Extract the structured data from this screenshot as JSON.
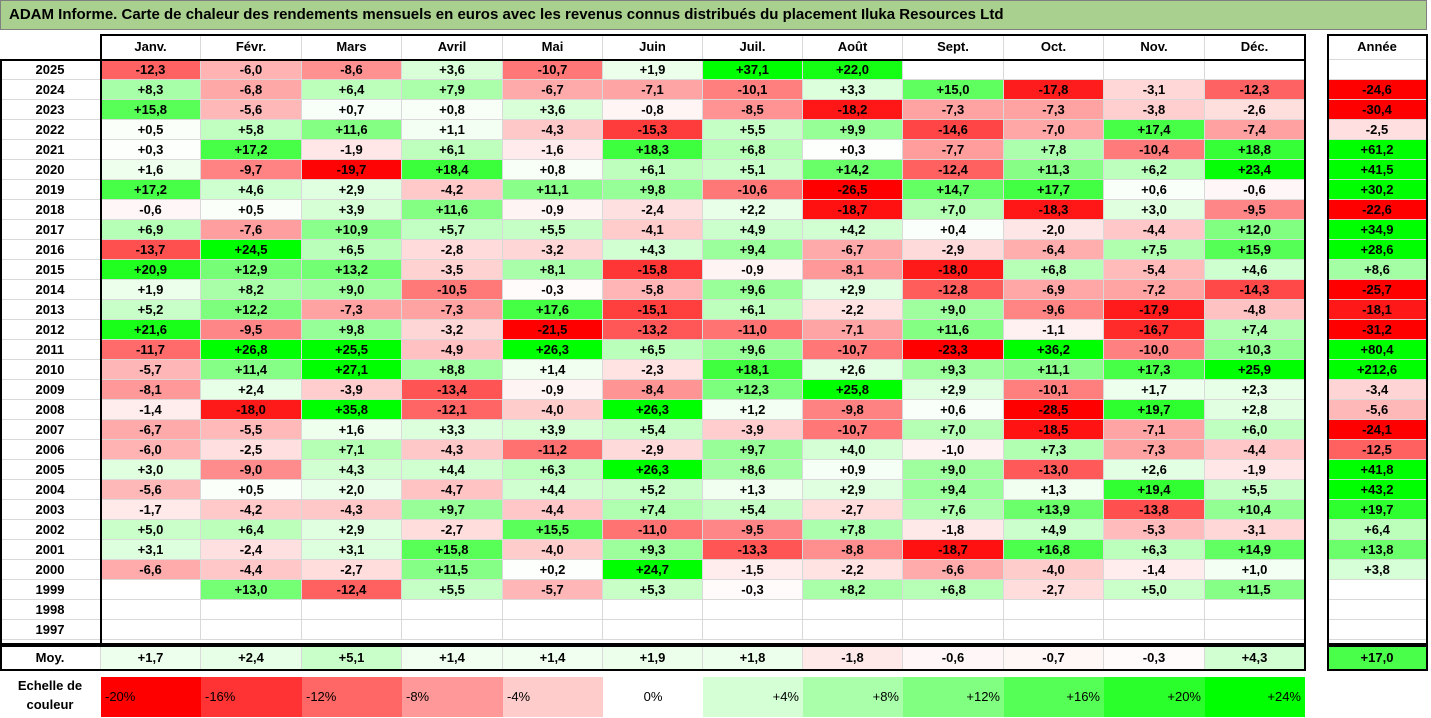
{
  "title": "ADAM Informe. Carte de chaleur des rendements mensuels en euros avec les revenus connus distribués du placement Iluka Resources Ltd",
  "chart_data": {
    "type": "heatmap",
    "columns": [
      "Janv.",
      "Févr.",
      "Mars",
      "Avril",
      "Mai",
      "Juin",
      "Juil.",
      "Août",
      "Sept.",
      "Oct.",
      "Nov.",
      "Déc."
    ],
    "annual_header": "Année",
    "rows": [
      {
        "year": "2025",
        "values": [
          "-12,3",
          "-6,0",
          "-8,6",
          "+3,6",
          "-10,7",
          "+1,9",
          "+37,1",
          "+22,0",
          "",
          "",
          "",
          ""
        ],
        "annual": ""
      },
      {
        "year": "2024",
        "values": [
          "+8,3",
          "-6,8",
          "+6,4",
          "+7,9",
          "-6,7",
          "-7,1",
          "-10,1",
          "+3,3",
          "+15,0",
          "-17,8",
          "-3,1",
          "-12,3"
        ],
        "annual": "-24,6"
      },
      {
        "year": "2023",
        "values": [
          "+15,8",
          "-5,6",
          "+0,7",
          "+0,8",
          "+3,6",
          "-0,8",
          "-8,5",
          "-18,2",
          "-7,3",
          "-7,3",
          "-3,8",
          "-2,6"
        ],
        "annual": "-30,4"
      },
      {
        "year": "2022",
        "values": [
          "+0,5",
          "+5,8",
          "+11,6",
          "+1,1",
          "-4,3",
          "-15,3",
          "+5,5",
          "+9,9",
          "-14,6",
          "-7,0",
          "+17,4",
          "-7,4"
        ],
        "annual": "-2,5"
      },
      {
        "year": "2021",
        "values": [
          "+0,3",
          "+17,2",
          "-1,9",
          "+6,1",
          "-1,6",
          "+18,3",
          "+6,8",
          "+0,3",
          "-7,7",
          "+7,8",
          "-10,4",
          "+18,8"
        ],
        "annual": "+61,2"
      },
      {
        "year": "2020",
        "values": [
          "+1,6",
          "-9,7",
          "-19,7",
          "+18,4",
          "+0,8",
          "+6,1",
          "+5,1",
          "+14,2",
          "-12,4",
          "+11,3",
          "+6,2",
          "+23,4"
        ],
        "annual": "+41,5"
      },
      {
        "year": "2019",
        "values": [
          "+17,2",
          "+4,6",
          "+2,9",
          "-4,2",
          "+11,1",
          "+9,8",
          "-10,6",
          "-26,5",
          "+14,7",
          "+17,7",
          "+0,6",
          "-0,6"
        ],
        "annual": "+30,2"
      },
      {
        "year": "2018",
        "values": [
          "-0,6",
          "+0,5",
          "+3,9",
          "+11,6",
          "-0,9",
          "-2,4",
          "+2,2",
          "-18,7",
          "+7,0",
          "-18,3",
          "+3,0",
          "-9,5"
        ],
        "annual": "-22,6"
      },
      {
        "year": "2017",
        "values": [
          "+6,9",
          "-7,6",
          "+10,9",
          "+5,7",
          "+5,5",
          "-4,1",
          "+4,9",
          "+4,2",
          "+0,4",
          "-2,0",
          "-4,4",
          "+12,0"
        ],
        "annual": "+34,9"
      },
      {
        "year": "2016",
        "values": [
          "-13,7",
          "+24,5",
          "+6,5",
          "-2,8",
          "-3,2",
          "+4,3",
          "+9,4",
          "-6,7",
          "-2,9",
          "-6,4",
          "+7,5",
          "+15,9"
        ],
        "annual": "+28,6"
      },
      {
        "year": "2015",
        "values": [
          "+20,9",
          "+12,9",
          "+13,2",
          "-3,5",
          "+8,1",
          "-15,8",
          "-0,9",
          "-8,1",
          "-18,0",
          "+6,8",
          "-5,4",
          "+4,6"
        ],
        "annual": "+8,6"
      },
      {
        "year": "2014",
        "values": [
          "+1,9",
          "+8,2",
          "+9,0",
          "-10,5",
          "-0,3",
          "-5,8",
          "+9,6",
          "+2,9",
          "-12,8",
          "-6,9",
          "-7,2",
          "-14,3"
        ],
        "annual": "-25,7"
      },
      {
        "year": "2013",
        "values": [
          "+5,2",
          "+12,2",
          "-7,3",
          "-7,3",
          "+17,6",
          "-15,1",
          "+6,1",
          "-2,2",
          "+9,0",
          "-9,6",
          "-17,9",
          "-4,8"
        ],
        "annual": "-18,1"
      },
      {
        "year": "2012",
        "values": [
          "+21,6",
          "-9,5",
          "+9,8",
          "-3,2",
          "-21,5",
          "-13,2",
          "-11,0",
          "-7,1",
          "+11,6",
          "-1,1",
          "-16,7",
          "+7,4"
        ],
        "annual": "-31,2"
      },
      {
        "year": "2011",
        "values": [
          "-11,7",
          "+26,8",
          "+25,5",
          "-4,9",
          "+26,3",
          "+6,5",
          "+9,6",
          "-10,7",
          "-23,3",
          "+36,2",
          "-10,0",
          "+10,3"
        ],
        "annual": "+80,4"
      },
      {
        "year": "2010",
        "values": [
          "-5,7",
          "+11,4",
          "+27,1",
          "+8,8",
          "+1,4",
          "-2,3",
          "+18,1",
          "+2,6",
          "+9,3",
          "+11,1",
          "+17,3",
          "+25,9"
        ],
        "annual": "+212,6"
      },
      {
        "year": "2009",
        "values": [
          "-8,1",
          "+2,4",
          "-3,9",
          "-13,4",
          "-0,9",
          "-8,4",
          "+12,3",
          "+25,8",
          "+2,9",
          "-10,1",
          "+1,7",
          "+2,3"
        ],
        "annual": "-3,4"
      },
      {
        "year": "2008",
        "values": [
          "-1,4",
          "-18,0",
          "+35,8",
          "-12,1",
          "-4,0",
          "+26,3",
          "+1,2",
          "-9,8",
          "+0,6",
          "-28,5",
          "+19,7",
          "+2,8"
        ],
        "annual": "-5,6"
      },
      {
        "year": "2007",
        "values": [
          "-6,7",
          "-5,5",
          "+1,6",
          "+3,3",
          "+3,9",
          "+5,4",
          "-3,9",
          "-10,7",
          "+7,0",
          "-18,5",
          "-7,1",
          "+6,0"
        ],
        "annual": "-24,1"
      },
      {
        "year": "2006",
        "values": [
          "-6,0",
          "-2,5",
          "+7,1",
          "-4,3",
          "-11,2",
          "-2,9",
          "+9,7",
          "+4,0",
          "-1,0",
          "+7,3",
          "-7,3",
          "-4,4"
        ],
        "annual": "-12,5"
      },
      {
        "year": "2005",
        "values": [
          "+3,0",
          "-9,0",
          "+4,3",
          "+4,4",
          "+6,3",
          "+26,3",
          "+8,6",
          "+0,9",
          "+9,0",
          "-13,0",
          "+2,6",
          "-1,9"
        ],
        "annual": "+41,8"
      },
      {
        "year": "2004",
        "values": [
          "-5,6",
          "+0,5",
          "+2,0",
          "-4,7",
          "+4,4",
          "+5,2",
          "+1,3",
          "+2,9",
          "+9,4",
          "+1,3",
          "+19,4",
          "+5,5"
        ],
        "annual": "+43,2"
      },
      {
        "year": "2003",
        "values": [
          "-1,7",
          "-4,2",
          "-4,3",
          "+9,7",
          "-4,4",
          "+7,4",
          "+5,4",
          "-2,7",
          "+7,6",
          "+13,9",
          "-13,8",
          "+10,4"
        ],
        "annual": "+19,7"
      },
      {
        "year": "2002",
        "values": [
          "+5,0",
          "+6,4",
          "+2,9",
          "-2,7",
          "+15,5",
          "-11,0",
          "-9,5",
          "+7,8",
          "-1,8",
          "+4,9",
          "-5,3",
          "-3,1"
        ],
        "annual": "+6,4"
      },
      {
        "year": "2001",
        "values": [
          "+3,1",
          "-2,4",
          "+3,1",
          "+15,8",
          "-4,0",
          "+9,3",
          "-13,3",
          "-8,8",
          "-18,7",
          "+16,8",
          "+6,3",
          "+14,9"
        ],
        "annual": "+13,8"
      },
      {
        "year": "2000",
        "values": [
          "-6,6",
          "-4,4",
          "-2,7",
          "+11,5",
          "+0,2",
          "+24,7",
          "-1,5",
          "-2,2",
          "-6,6",
          "-4,0",
          "-1,4",
          "+1,0"
        ],
        "annual": "+3,8"
      },
      {
        "year": "1999",
        "values": [
          "",
          "+13,0",
          "-12,4",
          "+5,5",
          "-5,7",
          "+5,3",
          "-0,3",
          "+8,2",
          "+6,8",
          "-2,7",
          "+5,0",
          "+11,5"
        ],
        "annual": ""
      },
      {
        "year": "1998",
        "values": [
          "",
          "",
          "",
          "",
          "",
          "",
          "",
          "",
          "",
          "",
          "",
          ""
        ],
        "annual": ""
      },
      {
        "year": "1997",
        "values": [
          "",
          "",
          "",
          "",
          "",
          "",
          "",
          "",
          "",
          "",
          "",
          ""
        ],
        "annual": ""
      }
    ],
    "average": {
      "label": "Moy.",
      "values": [
        "+1,7",
        "+2,4",
        "+5,1",
        "+1,4",
        "+1,4",
        "+1,9",
        "+1,8",
        "-1,8",
        "-0,6",
        "-0,7",
        "-0,3",
        "+4,3"
      ],
      "annual": "+17,0"
    },
    "color_scale": {
      "label": "Echelle de couleur",
      "steps": [
        "-20%",
        "-16%",
        "-12%",
        "-8%",
        "-4%",
        "0%",
        "+4%",
        "+8%",
        "+12%",
        "+16%",
        "+20%",
        "+24%"
      ],
      "negative_color": "#ff0000",
      "positive_color": "#00ff00",
      "neutral_color": "#ffffff"
    }
  }
}
